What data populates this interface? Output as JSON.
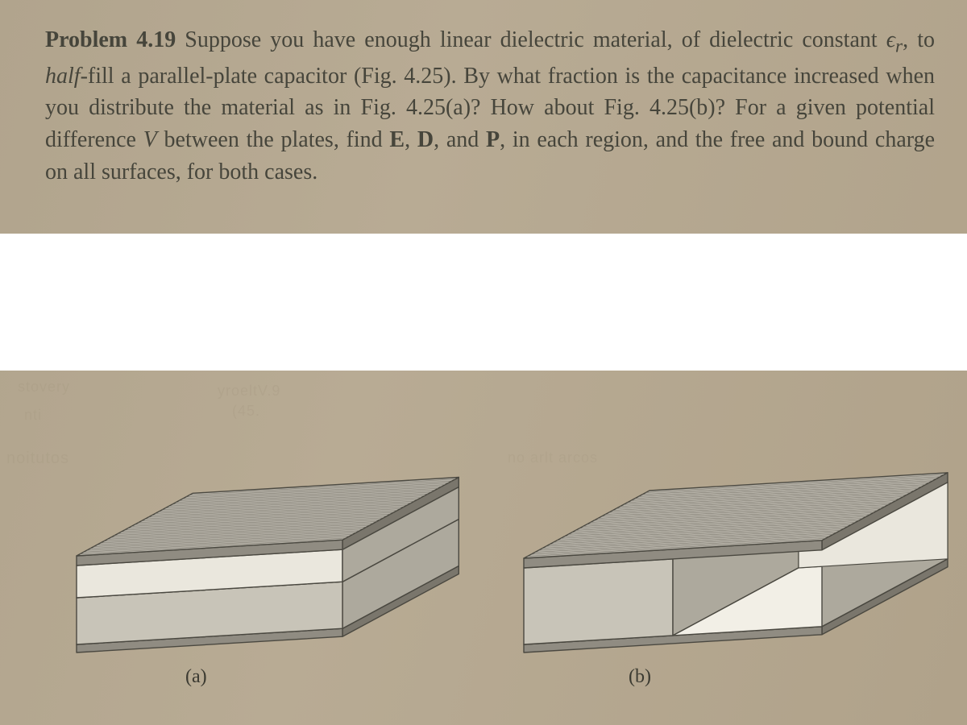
{
  "problem": {
    "label": "Problem 4.19",
    "body_parts": [
      " Suppose you have enough linear dielectric material, of dielectric constant ",
      ", to ",
      "-fill a parallel-plate capacitor (Fig. 4.25). By what fraction is the capacitance increased when you distribute the material as in Fig. 4.25(a)? How about Fig. 4.25(b)? For a given potential difference ",
      " between the plates, find ",
      ", ",
      ", and ",
      ", in each region, and the free and bound charge on all surfaces, for both cases."
    ],
    "epsilon": "ϵ",
    "epsilon_sub": "r",
    "half_word": "half",
    "V": "V",
    "E": "E",
    "D": "D",
    "P": "P"
  },
  "figure": {
    "caption_a": "(a)",
    "caption_b": "(b)",
    "colors": {
      "plate_top": "#b7b3a9",
      "plate_front": "#908c82",
      "plate_side": "#7a766c",
      "slab_top": "#e7e4da",
      "slab_front": "#c8c4b8",
      "slab_side": "#ada99d",
      "vacuum_top": "#f2efe6",
      "vacuum_front": "#eae7dd",
      "stroke": "#4a4840",
      "hatch": "#6f6b60"
    },
    "stroke_width": 1.4
  },
  "artifacts": {
    "a1": "stovery",
    "a2": "nti",
    "a3": "noitutos",
    "a4": "yroeltV.9",
    "a5": "(45.",
    "a6": "no arlt arcos"
  }
}
